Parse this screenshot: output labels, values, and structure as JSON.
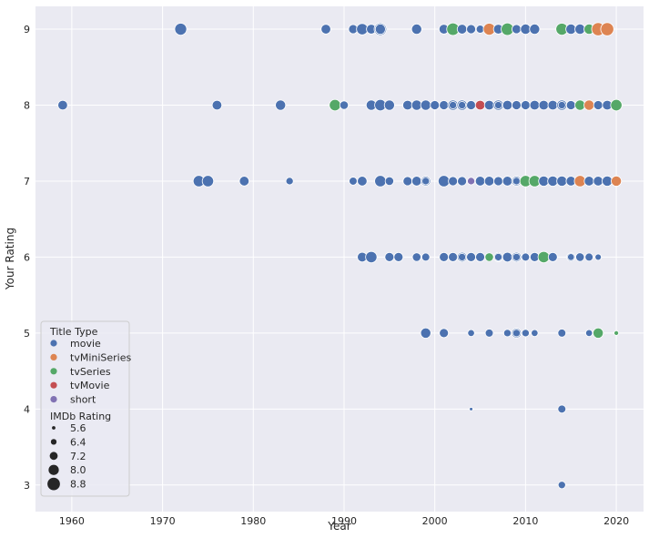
{
  "chart_data": {
    "type": "scatter",
    "xlabel": "Year",
    "ylabel": "Your Rating",
    "xlim": [
      1956,
      2023
    ],
    "ylim": [
      2.65,
      9.3
    ],
    "xticks": [
      1960,
      1970,
      1980,
      1990,
      2000,
      2010,
      2020
    ],
    "yticks": [
      3,
      4,
      5,
      6,
      7,
      8,
      9
    ],
    "grid": true,
    "legend_position": "lower-left",
    "legend_title_hue": "Title Type",
    "legend_title_size": "IMDb Rating",
    "hue_order": [
      "movie",
      "tvMiniSeries",
      "tvSeries",
      "tvMovie",
      "short"
    ],
    "colors": {
      "movie": "#4c72b0",
      "tvMiniSeries": "#dd8452",
      "tvSeries": "#55a868",
      "tvMovie": "#c44e52",
      "short": "#8172b3"
    },
    "size_legend": [
      5.6,
      6.4,
      7.2,
      8.0,
      8.8
    ],
    "points": [
      [
        1972,
        9,
        "movie",
        8.6
      ],
      [
        1988,
        9,
        "movie",
        7.8
      ],
      [
        1991,
        9,
        "movie",
        7.6
      ],
      [
        1992,
        9,
        "movie",
        8.4
      ],
      [
        1993,
        9,
        "movie",
        7.8
      ],
      [
        1994,
        9,
        "movie",
        8.8
      ],
      [
        1994,
        9,
        "movie",
        8.0
      ],
      [
        1998,
        9,
        "movie",
        8.0
      ],
      [
        2001,
        9,
        "movie",
        7.8
      ],
      [
        2002,
        9,
        "tvSeries",
        8.8
      ],
      [
        2003,
        9,
        "movie",
        7.8
      ],
      [
        2004,
        9,
        "movie",
        7.6
      ],
      [
        2005,
        9,
        "movie",
        7.2
      ],
      [
        2006,
        9,
        "tvMiniSeries",
        8.6
      ],
      [
        2007,
        9,
        "movie",
        7.8
      ],
      [
        2008,
        9,
        "tvSeries",
        8.8
      ],
      [
        2009,
        9,
        "movie",
        7.6
      ],
      [
        2010,
        9,
        "movie",
        8.0
      ],
      [
        2011,
        9,
        "movie",
        8.0
      ],
      [
        2014,
        9,
        "tvSeries",
        8.6
      ],
      [
        2015,
        9,
        "movie",
        8.0
      ],
      [
        2016,
        9,
        "movie",
        8.0
      ],
      [
        2017,
        9,
        "tvSeries",
        8.0
      ],
      [
        2018,
        9,
        "tvMiniSeries",
        9.0
      ],
      [
        2019,
        9,
        "tvMiniSeries",
        9.0
      ],
      [
        1959,
        8,
        "movie",
        7.8
      ],
      [
        1976,
        8,
        "movie",
        7.8
      ],
      [
        1983,
        8,
        "movie",
        8.0
      ],
      [
        1989,
        8,
        "tvSeries",
        8.4
      ],
      [
        1990,
        8,
        "movie",
        7.4
      ],
      [
        1993,
        8,
        "movie",
        8.0
      ],
      [
        1994,
        8,
        "movie",
        8.4
      ],
      [
        1995,
        8,
        "movie",
        8.0
      ],
      [
        1997,
        8,
        "movie",
        7.8
      ],
      [
        1998,
        8,
        "movie",
        8.0
      ],
      [
        1999,
        8,
        "movie",
        8.0
      ],
      [
        2000,
        8,
        "movie",
        7.6
      ],
      [
        2001,
        8,
        "movie",
        7.6
      ],
      [
        2002,
        8,
        "movie",
        8.0
      ],
      [
        2002,
        8,
        "movie",
        7.0
      ],
      [
        2003,
        8,
        "movie",
        8.0
      ],
      [
        2003,
        8,
        "movie",
        7.0
      ],
      [
        2004,
        8,
        "movie",
        7.6
      ],
      [
        2005,
        8,
        "tvMovie",
        7.8
      ],
      [
        2006,
        8,
        "movie",
        7.8
      ],
      [
        2007,
        8,
        "movie",
        8.0
      ],
      [
        2007,
        8,
        "movie",
        7.0
      ],
      [
        2008,
        8,
        "movie",
        7.8
      ],
      [
        2009,
        8,
        "movie",
        7.6
      ],
      [
        2010,
        8,
        "movie",
        7.6
      ],
      [
        2011,
        8,
        "movie",
        7.8
      ],
      [
        2012,
        8,
        "movie",
        7.8
      ],
      [
        2013,
        8,
        "movie",
        7.8
      ],
      [
        2014,
        8,
        "movie",
        8.0
      ],
      [
        2014,
        8,
        "movie",
        7.0
      ],
      [
        2015,
        8,
        "movie",
        7.6
      ],
      [
        2016,
        8,
        "tvSeries",
        8.0
      ],
      [
        2017,
        8,
        "tvMiniSeries",
        8.0
      ],
      [
        2018,
        8,
        "movie",
        7.6
      ],
      [
        2019,
        8,
        "movie",
        7.8
      ],
      [
        2020,
        8,
        "tvSeries",
        8.4
      ],
      [
        1974,
        7,
        "movie",
        8.4
      ],
      [
        1975,
        7,
        "movie",
        8.4
      ],
      [
        1979,
        7,
        "movie",
        7.8
      ],
      [
        1984,
        7,
        "movie",
        7.0
      ],
      [
        1991,
        7,
        "movie",
        7.2
      ],
      [
        1992,
        7,
        "movie",
        7.8
      ],
      [
        1994,
        7,
        "movie",
        8.4
      ],
      [
        1995,
        7,
        "movie",
        7.4
      ],
      [
        1997,
        7,
        "movie",
        7.6
      ],
      [
        1998,
        7,
        "movie",
        7.8
      ],
      [
        1999,
        7,
        "movie",
        7.8
      ],
      [
        1999,
        7,
        "movie",
        7.0
      ],
      [
        2001,
        7,
        "movie",
        8.4
      ],
      [
        2002,
        7,
        "movie",
        7.6
      ],
      [
        2003,
        7,
        "movie",
        7.6
      ],
      [
        2004,
        7,
        "short",
        7.0
      ],
      [
        2005,
        7,
        "movie",
        7.8
      ],
      [
        2006,
        7,
        "movie",
        7.8
      ],
      [
        2007,
        7,
        "movie",
        7.6
      ],
      [
        2008,
        7,
        "movie",
        7.8
      ],
      [
        2009,
        7,
        "movie",
        7.8
      ],
      [
        2009,
        7,
        "movie",
        7.0
      ],
      [
        2010,
        7,
        "tvSeries",
        8.4
      ],
      [
        2011,
        7,
        "tvSeries",
        8.4
      ],
      [
        2012,
        7,
        "movie",
        8.0
      ],
      [
        2013,
        7,
        "movie",
        8.0
      ],
      [
        2014,
        7,
        "movie",
        8.0
      ],
      [
        2015,
        7,
        "movie",
        7.8
      ],
      [
        2016,
        7,
        "tvMiniSeries",
        8.4
      ],
      [
        2017,
        7,
        "movie",
        7.8
      ],
      [
        2018,
        7,
        "movie",
        7.8
      ],
      [
        2019,
        7,
        "movie",
        8.0
      ],
      [
        2020,
        7,
        "tvMiniSeries",
        8.0
      ],
      [
        1992,
        6,
        "movie",
        7.8
      ],
      [
        1993,
        6,
        "movie",
        8.4
      ],
      [
        1995,
        6,
        "movie",
        7.6
      ],
      [
        1996,
        6,
        "movie",
        7.6
      ],
      [
        1998,
        6,
        "movie",
        7.4
      ],
      [
        1999,
        6,
        "movie",
        7.2
      ],
      [
        2001,
        6,
        "movie",
        7.6
      ],
      [
        2002,
        6,
        "movie",
        7.6
      ],
      [
        2003,
        6,
        "movie",
        7.8
      ],
      [
        2003,
        6,
        "movie",
        7.0
      ],
      [
        2004,
        6,
        "movie",
        7.6
      ],
      [
        2005,
        6,
        "movie",
        7.6
      ],
      [
        2006,
        6,
        "tvSeries",
        7.4
      ],
      [
        2007,
        6,
        "movie",
        7.6
      ],
      [
        2007,
        6,
        "movie",
        7.0
      ],
      [
        2008,
        6,
        "movie",
        7.8
      ],
      [
        2009,
        6,
        "movie",
        7.8
      ],
      [
        2009,
        6,
        "movie",
        7.0
      ],
      [
        2010,
        6,
        "movie",
        7.2
      ],
      [
        2011,
        6,
        "movie",
        7.6
      ],
      [
        2012,
        6,
        "tvSeries",
        8.4
      ],
      [
        2013,
        6,
        "movie",
        7.6
      ],
      [
        2015,
        6,
        "movie",
        7.4
      ],
      [
        2015,
        6,
        "movie",
        6.8
      ],
      [
        2016,
        6,
        "movie",
        7.4
      ],
      [
        2017,
        6,
        "movie",
        7.2
      ],
      [
        2018,
        6,
        "movie",
        6.6
      ],
      [
        1999,
        5,
        "movie",
        8.0
      ],
      [
        2001,
        5,
        "movie",
        7.6
      ],
      [
        2004,
        5,
        "movie",
        6.8
      ],
      [
        2006,
        5,
        "movie",
        7.2
      ],
      [
        2008,
        5,
        "movie",
        7.0
      ],
      [
        2009,
        5,
        "movie",
        7.8
      ],
      [
        2009,
        5,
        "movie",
        7.0
      ],
      [
        2010,
        5,
        "movie",
        7.0
      ],
      [
        2011,
        5,
        "movie",
        6.8
      ],
      [
        2014,
        5,
        "movie",
        7.2
      ],
      [
        2017,
        5,
        "movie",
        6.8
      ],
      [
        2018,
        5,
        "tvSeries",
        8.0
      ],
      [
        2020,
        5,
        "tvSeries",
        6.0
      ],
      [
        2004,
        4,
        "movie",
        5.6
      ],
      [
        2014,
        4,
        "movie",
        7.2
      ],
      [
        2014,
        3,
        "movie",
        7.0
      ]
    ]
  }
}
